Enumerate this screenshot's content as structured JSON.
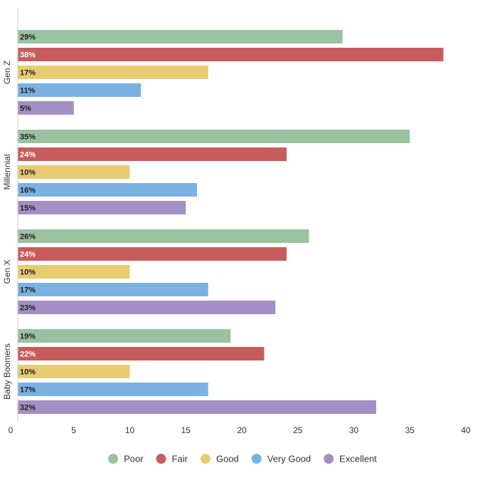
{
  "chart_data": {
    "type": "bar",
    "orientation": "horizontal",
    "categories": [
      "Gen Z",
      "Millennial",
      "Gen X",
      "Baby Boomers"
    ],
    "series": [
      {
        "name": "Poor",
        "color": "#9ac2a0",
        "label_color": "#222222",
        "values": [
          29,
          35,
          26,
          19
        ],
        "labels": [
          "29%",
          "35%",
          "26%",
          "19%"
        ]
      },
      {
        "name": "Fair",
        "color": "#c85c5c",
        "label_color": "#ffffff",
        "values": [
          38,
          24,
          24,
          22
        ],
        "labels": [
          "38%",
          "24%",
          "24%",
          "22%"
        ]
      },
      {
        "name": "Good",
        "color": "#e8cc72",
        "label_color": "#222222",
        "values": [
          17,
          10,
          10,
          10
        ],
        "labels": [
          "17%",
          "10%",
          "10%",
          "10%"
        ]
      },
      {
        "name": "Very Good",
        "color": "#79b2e2",
        "label_color": "#222222",
        "values": [
          11,
          16,
          17,
          17
        ],
        "labels": [
          "11%",
          "16%",
          "17%",
          "17%"
        ]
      },
      {
        "name": "Excellent",
        "color": "#a48fc4",
        "label_color": "#222222",
        "values": [
          5,
          15,
          23,
          32
        ],
        "labels": [
          "5%",
          "15%",
          "23%",
          "32%"
        ]
      }
    ],
    "xlim": [
      0,
      40
    ],
    "xticks": [
      "0",
      "5",
      "10",
      "15",
      "20",
      "25",
      "30",
      "35",
      "40"
    ],
    "grid": false,
    "legend_position": "bottom-center"
  }
}
